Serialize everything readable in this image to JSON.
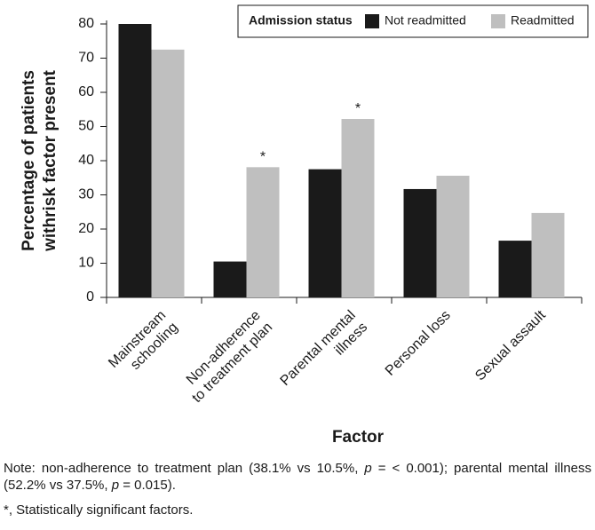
{
  "chart_data": {
    "type": "bar",
    "categories": [
      "Mainstream\nschooling",
      "Non-adherence\nto treatment plan",
      "Parental mental\nillness",
      "Personal loss",
      "Sexual assault"
    ],
    "series": [
      {
        "name": "Not readmitted",
        "color": "#1a1a1a",
        "values": [
          80,
          10.5,
          37.5,
          31.7,
          16.6
        ]
      },
      {
        "name": "Readmitted",
        "color": "#bfbfbf",
        "values": [
          72.5,
          38.1,
          52.2,
          35.6,
          24.7
        ],
        "markers": [
          null,
          "*",
          "*",
          null,
          null
        ]
      }
    ],
    "legend_title": "Admission status",
    "legend": "top-right",
    "x_label": "Factor",
    "y_label": [
      "Percentage of patients",
      "withrisk factor present"
    ],
    "ylim": [
      0,
      80
    ],
    "yticks": [
      0,
      10,
      20,
      30,
      40,
      50,
      60,
      70,
      80
    ]
  },
  "note": {
    "parts": [
      "Note: non-adherence to treatment plan (38.1% vs 10.5%, ",
      "p",
      " = < 0.001); parental mental illness (52.2% vs 37.5%, ",
      "p",
      " = 0.015)."
    ],
    "footnote": "*, Statistically significant factors."
  }
}
